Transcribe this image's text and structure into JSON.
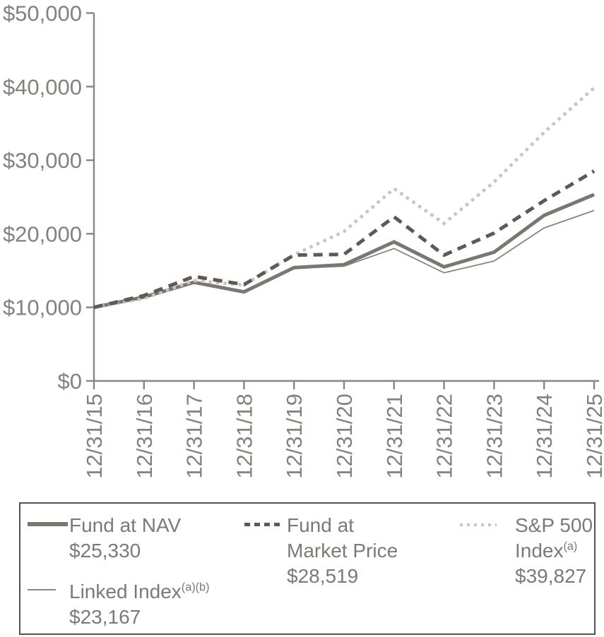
{
  "chart_data": {
    "type": "line",
    "title": "",
    "xlabel": "",
    "ylabel": "",
    "x_labels": [
      "12/31/15",
      "12/31/16",
      "12/31/17",
      "12/31/18",
      "12/31/19",
      "12/31/20",
      "12/31/21",
      "12/31/22",
      "12/31/23",
      "12/31/24",
      "12/31/25"
    ],
    "y_ticks": [
      {
        "label": "$0",
        "value": 0
      },
      {
        "label": "$10,000",
        "value": 10000
      },
      {
        "label": "$20,000",
        "value": 20000
      },
      {
        "label": "$30,000",
        "value": 30000
      },
      {
        "label": "$40,000",
        "value": 40000
      },
      {
        "label": "$50,000",
        "value": 50000
      }
    ],
    "ylim": [
      0,
      50000
    ],
    "grid": false,
    "legend_position": "bottom",
    "series": [
      {
        "id": "fund_nav",
        "name": "Fund at NAV",
        "style": "solid-thick",
        "color": "#7b7671",
        "values": [
          10000,
          11400,
          13400,
          12100,
          15400,
          15800,
          18900,
          15500,
          17500,
          22500,
          25330
        ]
      },
      {
        "id": "market",
        "name": "Fund at Market Price",
        "style": "dashed",
        "color": "#5e5954",
        "values": [
          10000,
          11600,
          14200,
          13100,
          17100,
          17200,
          22300,
          17100,
          20100,
          24500,
          28519
        ]
      },
      {
        "id": "sp500",
        "name": "S&P 500 Index(a)",
        "style": "dotted",
        "color": "#c9c6c2",
        "values": [
          10000,
          11200,
          13640,
          13040,
          17150,
          20310,
          26140,
          21400,
          27030,
          33790,
          39827
        ]
      },
      {
        "id": "linked",
        "name": "Linked Index(a)(b)",
        "style": "solid-thin",
        "color": "#8a8580",
        "values": [
          10000,
          11300,
          13300,
          12000,
          15300,
          15600,
          18000,
          14700,
          16300,
          20800,
          23167
        ]
      }
    ]
  },
  "legend": {
    "fund_nav": {
      "line1": "Fund at NAV",
      "value": "$25,330"
    },
    "market": {
      "line1": "Fund at",
      "line2": "Market Price",
      "value": "$28,519"
    },
    "sp500": {
      "line1": "S&P 500",
      "line2": "Index",
      "line2_sup": "(a)",
      "value": "$39,827"
    },
    "linked": {
      "line1": "Linked Index",
      "line1_sup": "(a)(b)",
      "value": "$23,167"
    }
  }
}
